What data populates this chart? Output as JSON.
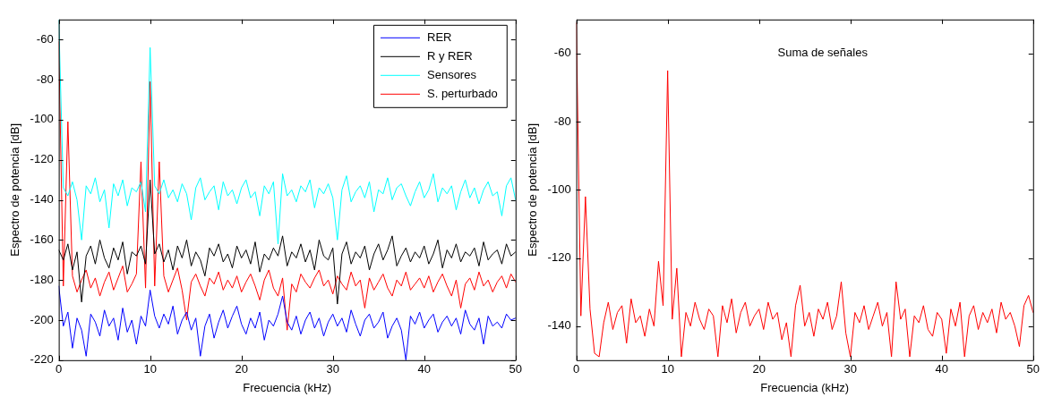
{
  "chart_data": [
    {
      "type": "line",
      "xlabel": "Frecuencia (kHz)",
      "ylabel": "Espectro de potencia [dB]",
      "xlim": [
        0,
        50
      ],
      "xticks": [
        0,
        10,
        20,
        30,
        40,
        50
      ],
      "ylim": [
        -220,
        -50
      ],
      "yticks": [
        -220,
        -200,
        -180,
        -160,
        -140,
        -120,
        -100,
        -80,
        -60
      ],
      "legend": "top right",
      "x": [
        0,
        0.5,
        1,
        1.5,
        2,
        2.5,
        3,
        3.5,
        4,
        4.5,
        5,
        5.5,
        6,
        6.5,
        7,
        7.5,
        8,
        8.5,
        9,
        9.5,
        10,
        10.5,
        11,
        11.5,
        12,
        12.5,
        13,
        13.5,
        14,
        14.5,
        15,
        15.5,
        16,
        16.5,
        17,
        17.5,
        18,
        18.5,
        19,
        19.5,
        20,
        20.5,
        21,
        21.5,
        22,
        22.5,
        23,
        23.5,
        24,
        24.5,
        25,
        25.5,
        26,
        26.5,
        27,
        27.5,
        28,
        28.5,
        29,
        29.5,
        30,
        30.5,
        31,
        31.5,
        32,
        32.5,
        33,
        33.5,
        34,
        34.5,
        35,
        35.5,
        36,
        36.5,
        37,
        37.5,
        38,
        38.5,
        39,
        39.5,
        40,
        40.5,
        41,
        41.5,
        42,
        42.5,
        43,
        43.5,
        44,
        44.5,
        45,
        45.5,
        46,
        46.5,
        47,
        47.5,
        48,
        48.5,
        49,
        49.5,
        50
      ],
      "series": [
        {
          "name": "RER",
          "type": "line",
          "color": "#0000ff",
          "values": [
            -183,
            -203,
            -196,
            -214,
            -199,
            -205,
            -218,
            -197,
            -201,
            -208,
            -195,
            -203,
            -199,
            -210,
            -194,
            -206,
            -200,
            -212,
            -198,
            -203,
            -185,
            -198,
            -204,
            -197,
            -202,
            -193,
            -207,
            -200,
            -196,
            -205,
            -199,
            -218,
            -203,
            -197,
            -209,
            -201,
            -195,
            -204,
            -198,
            -193,
            -202,
            -207,
            -199,
            -204,
            -196,
            -210,
            -200,
            -203,
            -197,
            -188,
            -201,
            -205,
            -198,
            -207,
            -200,
            -196,
            -204,
            -199,
            -208,
            -201,
            -197,
            -203,
            -199,
            -206,
            -195,
            -202,
            -208,
            -200,
            -197,
            -204,
            -201,
            -196,
            -209,
            -203,
            -199,
            -205,
            -220,
            -198,
            -202,
            -196,
            -204,
            -200,
            -197,
            -206,
            -201,
            -198,
            -203,
            -199,
            -207,
            -195,
            -202,
            -205,
            -199,
            -212,
            -198,
            -203,
            -201,
            -204,
            -197,
            -200,
            -199
          ]
        },
        {
          "name": "R y RER",
          "type": "line",
          "color": "#000000",
          "values": [
            -165,
            -170,
            -162,
            -175,
            -166,
            -191,
            -168,
            -163,
            -172,
            -160,
            -169,
            -174,
            -164,
            -170,
            -161,
            -177,
            -166,
            -168,
            -163,
            -172,
            -130,
            -167,
            -162,
            -171,
            -165,
            -175,
            -163,
            -169,
            -160,
            -173,
            -166,
            -170,
            -178,
            -164,
            -168,
            -162,
            -171,
            -167,
            -174,
            -163,
            -169,
            -165,
            -172,
            -161,
            -176,
            -167,
            -170,
            -164,
            -168,
            -158,
            -173,
            -166,
            -169,
            -162,
            -171,
            -165,
            -175,
            -160,
            -168,
            -170,
            -164,
            -192,
            -167,
            -161,
            -172,
            -166,
            -169,
            -163,
            -175,
            -167,
            -162,
            -170,
            -165,
            -158,
            -173,
            -168,
            -164,
            -171,
            -166,
            -169,
            -163,
            -172,
            -167,
            -160,
            -174,
            -165,
            -169,
            -162,
            -171,
            -166,
            -168,
            -164,
            -173,
            -161,
            -170,
            -167,
            -165,
            -172,
            -162,
            -168,
            -166
          ]
        },
        {
          "name": "Sensores",
          "type": "line",
          "color": "#00ffff",
          "values": [
            -50,
            -134,
            -138,
            -131,
            -140,
            -160,
            -133,
            -137,
            -129,
            -141,
            -135,
            -154,
            -132,
            -138,
            -130,
            -143,
            -134,
            -136,
            -131,
            -146,
            -64,
            -133,
            -137,
            -130,
            -139,
            -135,
            -141,
            -132,
            -137,
            -150,
            -134,
            -129,
            -140,
            -136,
            -133,
            -145,
            -131,
            -138,
            -135,
            -142,
            -134,
            -130,
            -139,
            -136,
            -148,
            -133,
            -137,
            -131,
            -162,
            -127,
            -138,
            -135,
            -141,
            -133,
            -136,
            -130,
            -144,
            -134,
            -137,
            -132,
            -139,
            -160,
            -135,
            -128,
            -141,
            -136,
            -133,
            -139,
            -131,
            -146,
            -135,
            -137,
            -129,
            -140,
            -134,
            -132,
            -138,
            -143,
            -136,
            -131,
            -139,
            -135,
            -127,
            -141,
            -134,
            -137,
            -133,
            -145,
            -136,
            -130,
            -139,
            -134,
            -142,
            -135,
            -131,
            -138,
            -136,
            -148,
            -133,
            -129,
            -140
          ]
        },
        {
          "name": "S. perturbado",
          "type": "line",
          "color": "#ff0000",
          "values": [
            -61,
            -183,
            -101,
            -178,
            -186,
            -180,
            -175,
            -184,
            -179,
            -188,
            -181,
            -176,
            -185,
            -179,
            -173,
            -186,
            -182,
            -177,
            -121,
            -184,
            -81,
            -183,
            -121,
            -178,
            -186,
            -180,
            -174,
            -185,
            -200,
            -181,
            -177,
            -183,
            -188,
            -179,
            -182,
            -176,
            -185,
            -180,
            -184,
            -178,
            -186,
            -181,
            -177,
            -183,
            -190,
            -180,
            -175,
            -184,
            -188,
            -179,
            -205,
            -182,
            -186,
            -177,
            -181,
            -184,
            -179,
            -175,
            -183,
            -180,
            -187,
            -178,
            -182,
            -185,
            -176,
            -183,
            -180,
            -194,
            -179,
            -185,
            -181,
            -177,
            -184,
            -188,
            -180,
            -183,
            -176,
            -185,
            -182,
            -179,
            -184,
            -178,
            -186,
            -181,
            -177,
            -183,
            -188,
            -180,
            -194,
            -182,
            -179,
            -185,
            -176,
            -183,
            -180,
            -186,
            -181,
            -178,
            -184,
            -177,
            -181
          ]
        }
      ]
    },
    {
      "type": "line",
      "xlabel": "Frecuencia (kHz)",
      "ylabel": "Espectro de potencia [dB]",
      "xlim": [
        0,
        50
      ],
      "xticks": [
        0,
        10,
        20,
        30,
        40,
        50
      ],
      "ylim": [
        -150,
        -50
      ],
      "yticks": [
        -140,
        -120,
        -100,
        -80,
        -60
      ],
      "annotations": [
        "Suma de señales"
      ],
      "x": [
        0,
        0.5,
        1,
        1.5,
        2,
        2.5,
        3,
        3.5,
        4,
        4.5,
        5,
        5.5,
        6,
        6.5,
        7,
        7.5,
        8,
        8.5,
        9,
        9.5,
        10,
        10.5,
        11,
        11.5,
        12,
        12.5,
        13,
        13.5,
        14,
        14.5,
        15,
        15.5,
        16,
        16.5,
        17,
        17.5,
        18,
        18.5,
        19,
        19.5,
        20,
        20.5,
        21,
        21.5,
        22,
        22.5,
        23,
        23.5,
        24,
        24.5,
        25,
        25.5,
        26,
        26.5,
        27,
        27.5,
        28,
        28.5,
        29,
        29.5,
        30,
        30.5,
        31,
        31.5,
        32,
        32.5,
        33,
        33.5,
        34,
        34.5,
        35,
        35.5,
        36,
        36.5,
        37,
        37.5,
        38,
        38.5,
        39,
        39.5,
        40,
        40.5,
        41,
        41.5,
        42,
        42.5,
        43,
        43.5,
        44,
        44.5,
        45,
        45.5,
        46,
        46.5,
        47,
        47.5,
        48,
        48.5,
        49,
        49.5,
        50
      ],
      "series": [
        {
          "type": "line",
          "color": "#ff0000",
          "values": [
            -51,
            -137,
            -102,
            -135,
            -148,
            -149,
            -139,
            -133,
            -141,
            -136,
            -134,
            -145,
            -132,
            -139,
            -137,
            -143,
            -135,
            -140,
            -121,
            -134,
            -65,
            -138,
            -123,
            -149,
            -136,
            -140,
            -133,
            -138,
            -141,
            -135,
            -137,
            -149,
            -134,
            -139,
            -132,
            -142,
            -136,
            -133,
            -140,
            -137,
            -135,
            -141,
            -133,
            -138,
            -136,
            -144,
            -139,
            -149,
            -134,
            -128,
            -140,
            -136,
            -143,
            -135,
            -138,
            -133,
            -141,
            -137,
            -127,
            -142,
            -149,
            -136,
            -139,
            -134,
            -141,
            -137,
            -133,
            -140,
            -136,
            -149,
            -127,
            -138,
            -135,
            -149,
            -137,
            -139,
            -134,
            -141,
            -143,
            -136,
            -138,
            -148,
            -135,
            -140,
            -133,
            -149,
            -137,
            -134,
            -141,
            -136,
            -139,
            -135,
            -142,
            -133,
            -138,
            -136,
            -140,
            -146,
            -134,
            -131,
            -136
          ]
        }
      ]
    }
  ]
}
